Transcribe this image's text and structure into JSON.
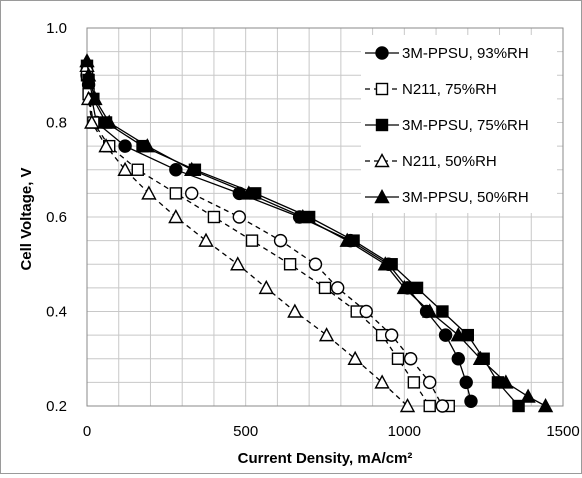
{
  "chart_data": {
    "type": "line",
    "title": "",
    "xlabel": "Current Density, mA/cm²",
    "ylabel": "Cell Voltage, V",
    "xlim": [
      0,
      1500
    ],
    "ylim": [
      0.2,
      1.0
    ],
    "x_ticks": [
      "0",
      "500",
      "1000",
      "1500"
    ],
    "y_ticks": [
      "0.2",
      "0.4",
      "0.6",
      "0.8",
      "1.0"
    ],
    "grid": true,
    "legend_position": "top-right",
    "series": [
      {
        "name": "3M-PPSU, 93%RH",
        "marker": "circle",
        "filled": true,
        "dashed": false,
        "x": [
          0,
          5,
          15,
          30,
          120,
          280,
          480,
          670,
          830,
          950,
          1010,
          1070,
          1130,
          1170,
          1195,
          1210
        ],
        "y": [
          0.9,
          0.88,
          0.85,
          0.8,
          0.75,
          0.7,
          0.65,
          0.6,
          0.55,
          0.5,
          0.45,
          0.4,
          0.35,
          0.3,
          0.25,
          0.21
        ]
      },
      {
        "name": "N211, 75%RH",
        "marker": "square",
        "filled": false,
        "dashed": true,
        "x": [
          0,
          5,
          20,
          70,
          160,
          280,
          400,
          520,
          640,
          750,
          850,
          930,
          980,
          1030,
          1080,
          1140
        ],
        "y": [
          0.9,
          0.86,
          0.8,
          0.75,
          0.7,
          0.65,
          0.6,
          0.55,
          0.5,
          0.45,
          0.4,
          0.35,
          0.3,
          0.25,
          0.2,
          0.2
        ]
      },
      {
        "name": "3M-PPSU, 75%RH",
        "marker": "square",
        "filled": true,
        "dashed": false,
        "x": [
          0,
          5,
          20,
          60,
          175,
          340,
          530,
          700,
          840,
          960,
          1040,
          1120,
          1200,
          1250,
          1295,
          1360
        ],
        "y": [
          0.92,
          0.89,
          0.85,
          0.8,
          0.75,
          0.7,
          0.65,
          0.6,
          0.55,
          0.5,
          0.45,
          0.4,
          0.35,
          0.3,
          0.25,
          0.2
        ]
      },
      {
        "name": "N211, 50%RH",
        "marker": "triangle",
        "filled": false,
        "dashed": true,
        "x": [
          0,
          5,
          15,
          60,
          120,
          195,
          280,
          375,
          475,
          565,
          655,
          755,
          845,
          930,
          1010
        ],
        "y": [
          0.92,
          0.85,
          0.8,
          0.75,
          0.7,
          0.65,
          0.6,
          0.55,
          0.5,
          0.45,
          0.4,
          0.35,
          0.3,
          0.25,
          0.2
        ]
      },
      {
        "name": "3M-PPSU, 50%RH",
        "marker": "triangle",
        "filled": true,
        "dashed": false,
        "x": [
          0,
          5,
          25,
          70,
          190,
          330,
          510,
          680,
          820,
          940,
          1000,
          1080,
          1170,
          1240,
          1320,
          1390,
          1445
        ],
        "y": [
          0.93,
          0.9,
          0.85,
          0.8,
          0.75,
          0.7,
          0.65,
          0.6,
          0.55,
          0.5,
          0.45,
          0.4,
          0.35,
          0.3,
          0.25,
          0.22,
          0.2
        ]
      }
    ]
  },
  "series_styles": [
    {
      "open_circles_x": [
        330,
        480,
        610,
        720,
        790,
        880,
        960,
        1020,
        1080,
        1120
      ],
      "open_circles_y": [
        0.65,
        0.6,
        0.55,
        0.5,
        0.45,
        0.4,
        0.35,
        0.3,
        0.25,
        0.2
      ]
    }
  ],
  "colors": {
    "line": "#000000",
    "grid": "#c8c8c8",
    "frame": "#9a9a9a"
  }
}
